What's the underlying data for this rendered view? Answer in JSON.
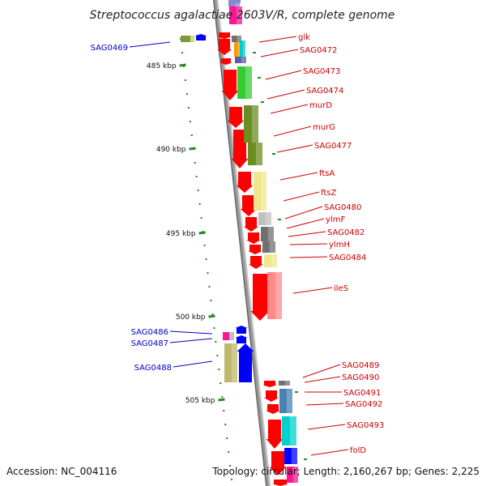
{
  "title": "Streptococcus agalactiae 2603V/R, complete genome",
  "accession": "Accession: NC_004116",
  "topology": "Topology: circular; Length: 2,160,267 bp; Genes: 2,225",
  "colors": {
    "cds": "#ff0000",
    "left_label": "#0000cc",
    "right_label": "#cc0000",
    "tick": "#228b22",
    "backbone": "#999999"
  },
  "kbp_ticks": [
    "485 kbp",
    "490 kbp",
    "495 kbp",
    "500 kbp",
    "505 kbp"
  ],
  "left_genes": [
    "SAG0469",
    "SAG0486",
    "SAG0487",
    "SAG0488"
  ],
  "right_genes": [
    "glk",
    "SAG0472",
    "SAG0473",
    "SAG0474",
    "murD",
    "murG",
    "SAG0477",
    "ftsA",
    "ftsZ",
    "SAG0480",
    "ylmF",
    "SAG0482",
    "ylmH",
    "SAG0484",
    "ileS",
    "SAG0489",
    "SAG0490",
    "SAG0491",
    "SAG0492",
    "SAG0493",
    "folD"
  ],
  "feature_colors": [
    "#7a9a3a",
    "#ff9900",
    "#00cccc",
    "#5a5aaa",
    "#33cc33",
    "#6b8e23",
    "#f0e68c",
    "#c0c0c0",
    "#707070",
    "#ff8888",
    "#ff1493",
    "#bdb76b",
    "#0000ff",
    "#4682b4",
    "#00d0d0",
    "#8888cc"
  ]
}
